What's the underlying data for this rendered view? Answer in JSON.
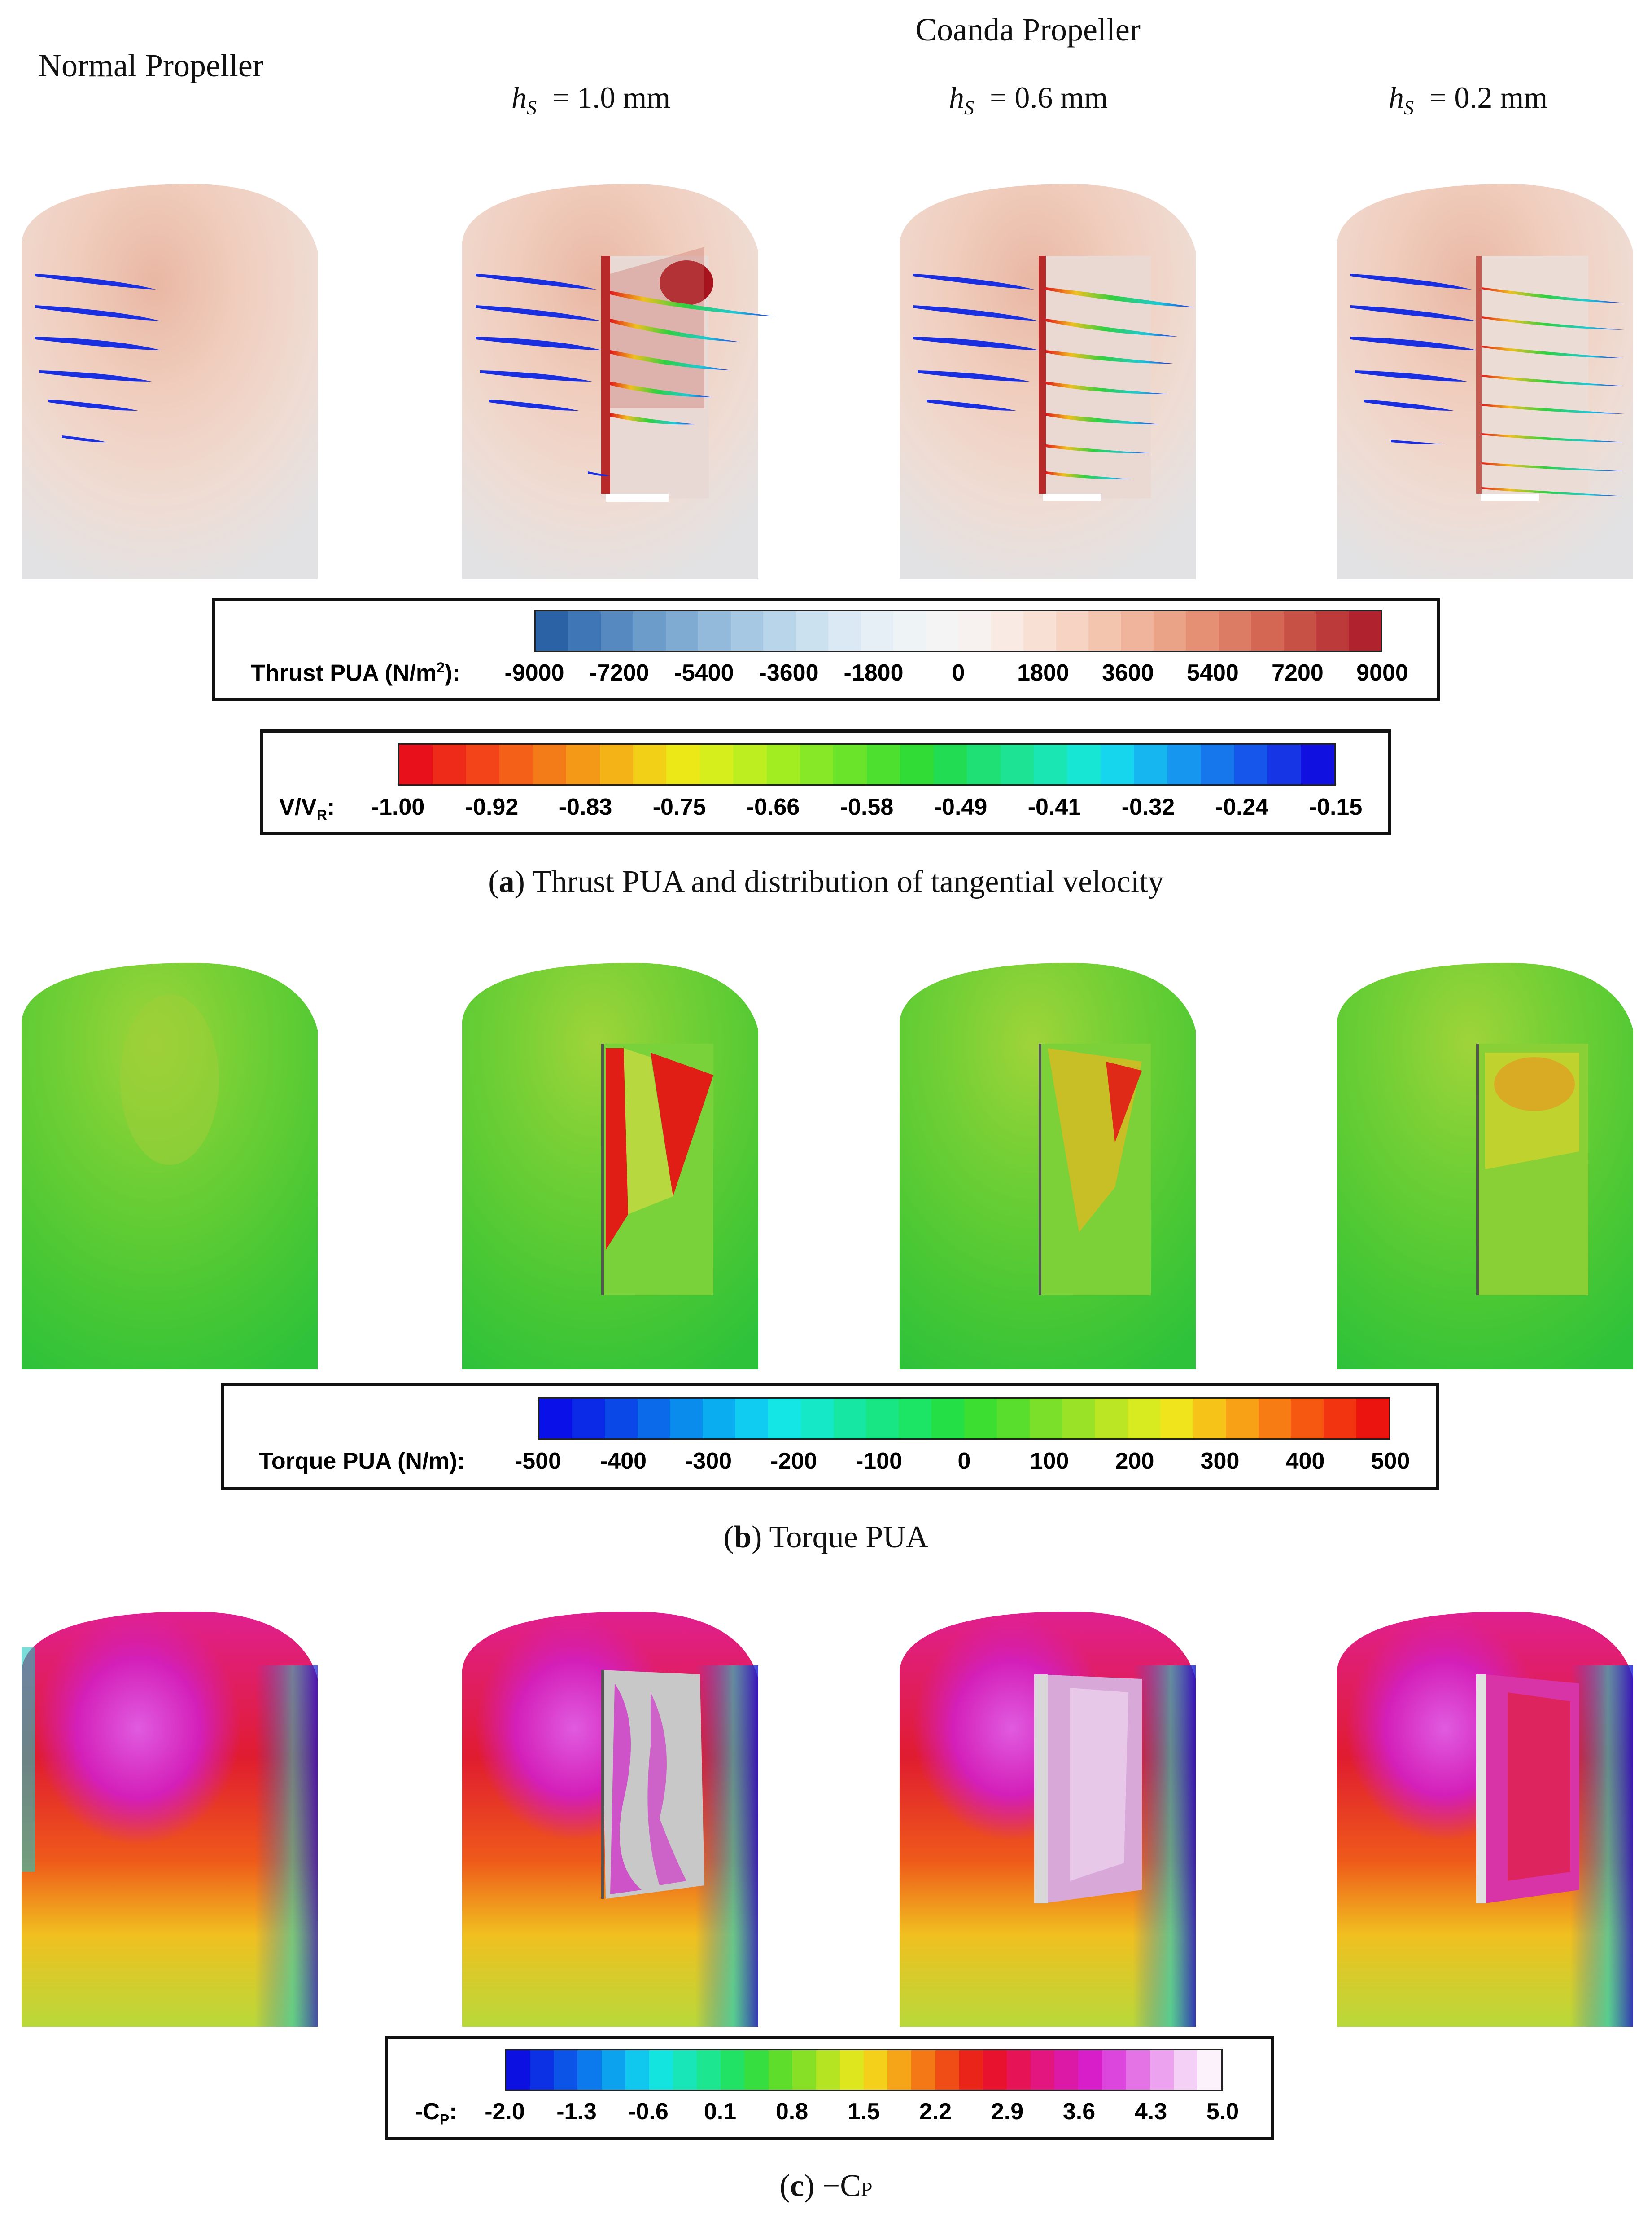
{
  "header": {
    "normal_label": "Normal Propeller",
    "coanda_label": "Coanda Propeller",
    "columns": [
      {
        "sym": "h",
        "sub": "S",
        "value": "= 1.0 mm"
      },
      {
        "sym": "h",
        "sub": "S",
        "value": "= 0.6 mm"
      },
      {
        "sym": "h",
        "sub": "S",
        "value": "= 0.2 mm"
      }
    ]
  },
  "legend_thrust": {
    "title": "Thrust PUA (N/m",
    "title_sup": "2",
    "title_end": "):",
    "ticks": [
      "-9000",
      "-7200",
      "-5400",
      "-3600",
      "-1800",
      "0",
      "1800",
      "3600",
      "5400",
      "7200",
      "9000"
    ]
  },
  "legend_velocity": {
    "title": "V/V",
    "title_sub": "R",
    "title_end": ":",
    "ticks": [
      "-1.00",
      "-0.92",
      "-0.83",
      "-0.75",
      "-0.66",
      "-0.58",
      "-0.49",
      "-0.41",
      "-0.32",
      "-0.24",
      "-0.15"
    ]
  },
  "legend_torque": {
    "title": "Torque PUA (N/m):",
    "ticks": [
      "-500",
      "-400",
      "-300",
      "-200",
      "-100",
      "0",
      "100",
      "200",
      "300",
      "400",
      "500"
    ]
  },
  "legend_cp": {
    "title": "-C",
    "title_sub": "P",
    "title_end": ":",
    "ticks": [
      "-2.0",
      "-1.3",
      "-0.6",
      "0.1",
      "0.8",
      "1.5",
      "2.2",
      "2.9",
      "3.6",
      "4.3",
      "5.0"
    ]
  },
  "captions": {
    "a_letter": "a",
    "a_text": " Thrust PUA and distribution of tangential velocity",
    "b_letter": "b",
    "b_text": " Torque PUA",
    "c_letter": "c",
    "c_text": " −C",
    "c_sub": "P"
  },
  "colors": {
    "thrust_low": "#2a64a8",
    "thrust_high": "#b0182a",
    "velocity_low": "#e8101a",
    "velocity_high": "#1010e0",
    "torque_green": "#3cc93a",
    "cp_magenta": "#d91fd0",
    "cp_red": "#e81c2a"
  }
}
